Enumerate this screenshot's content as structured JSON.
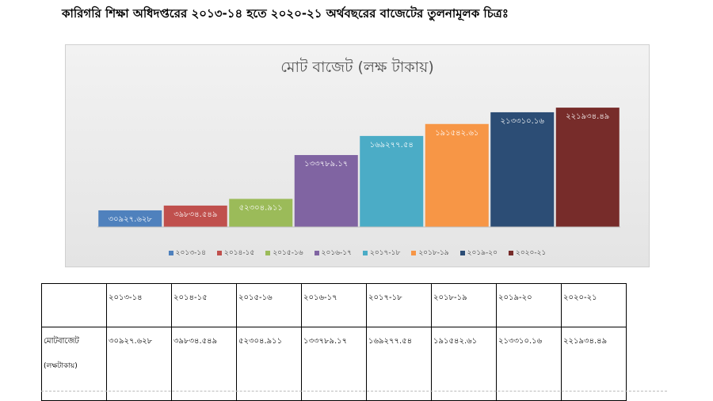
{
  "heading": "কারিগরি শিক্ষা অধিদপ্তরের ২০১৩-১৪ হতে ২০২০-২১ অর্থবছরের বাজেটের তুলনামূলক চিত্রঃ",
  "chart_data": {
    "type": "bar",
    "title": "মোট বাজেট (লক্ষ টাকায়)",
    "categories": [
      "২০১৩-১৪",
      "২০১৪-১৫",
      "২০১৫-১৬",
      "২০১৬-১৭",
      "২০১৭-১৮",
      "২০১৮-১৯",
      "২০১৯-২০",
      "২০২০-২১"
    ],
    "values": [
      30927.628,
      39834.549,
      52304.911,
      133789.17,
      169277.54,
      191542.61,
      213310.16,
      221934.49
    ],
    "value_labels": [
      "৩০৯২৭.৬২৮",
      "৩৯৮৩৪.৫৪৯",
      "৫২৩০৪.৯১১",
      "১৩৩৭৮৯.১৭",
      "১৬৯২৭৭.৫৪",
      "১৯১৫৪২.৬১",
      "২১৩৩১০.১৬",
      "২২১৯৩৪.৪৯"
    ],
    "colors": [
      "#4f81bd",
      "#c0504d",
      "#9bbb59",
      "#8064a2",
      "#4bacc6",
      "#f79646",
      "#2c4d75",
      "#772c2a"
    ],
    "ylim": [
      0,
      250000
    ],
    "legend_position": "bottom",
    "grid": false
  },
  "table": {
    "header": [
      "",
      "২০১৩-১৪",
      "২০১৪-১৫",
      "২০১৫-১৬",
      "২০১৬-১৭",
      "২০১৭-১৮",
      "২০১৮-১৯",
      "২০১৯-২০",
      "২০২০-২১"
    ],
    "row_label": "মোটবাজেট",
    "row_sublabel": "(লক্ষটাকায়)",
    "row_values": [
      "৩০৯২৭.৬২৮",
      "৩৯৮৩৪.৫৪৯",
      "৫২৩০৪.৯১১",
      "১৩৩৭৮৯.১৭",
      "১৬৯২৭৭.৫৪",
      "১৯১৫৪২.৬১",
      "২১৩৩১০.১৬",
      "২২১৯৩৪.৪৯"
    ]
  }
}
